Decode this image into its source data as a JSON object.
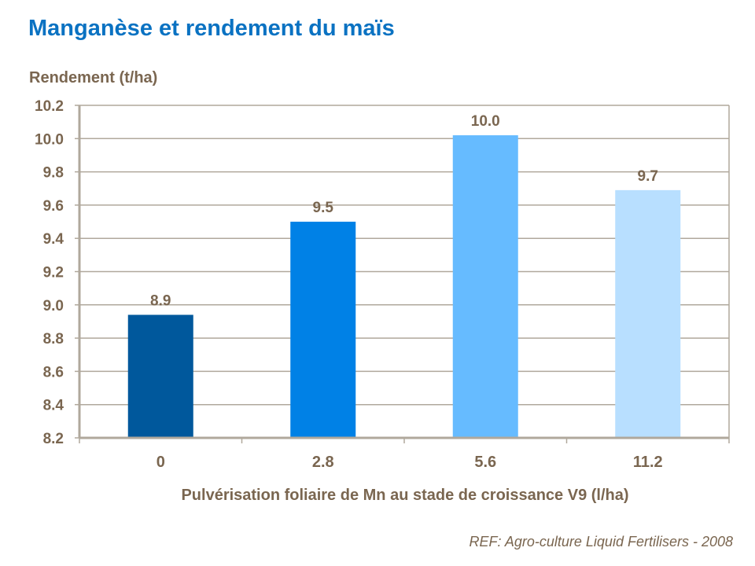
{
  "chart_data": {
    "type": "bar",
    "title": "Manganèse et rendement du maïs",
    "ylabel": "Rendement (t/ha)",
    "xlabel": "Pulvérisation foliaire de Mn au stade de croissance V9 (l/ha)",
    "categories": [
      "0",
      "2.8",
      "5.6",
      "11.2"
    ],
    "values": [
      8.94,
      9.5,
      10.02,
      9.69
    ],
    "data_labels": [
      "8.9",
      "9.5",
      "10.0",
      "9.7"
    ],
    "colors": [
      "#00589c",
      "#0081e6",
      "#66bbff",
      "#b8dfff"
    ],
    "ylim": [
      8.2,
      10.2
    ],
    "yticks": [
      "8.2",
      "8.4",
      "8.6",
      "8.8",
      "9.0",
      "9.2",
      "9.4",
      "9.6",
      "9.8",
      "10.0",
      "10.2"
    ],
    "grid": true,
    "legend": "none",
    "source": "REF: Agro-culture Liquid Fertilisers - 2008"
  }
}
